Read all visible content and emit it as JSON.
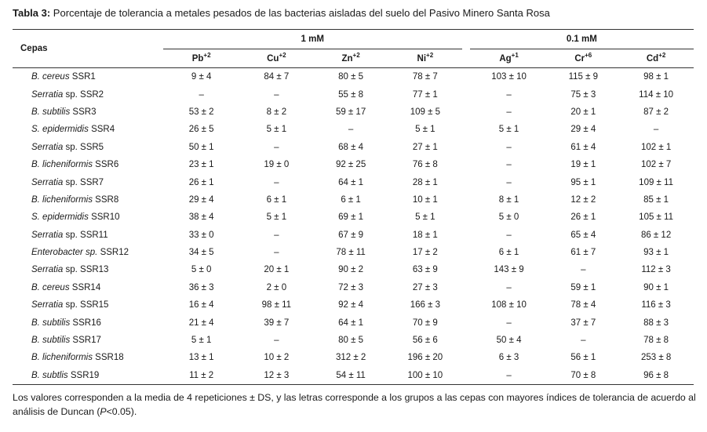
{
  "caption": {
    "label": "Tabla 3:",
    "text": "Porcentaje de tolerancia a metales pesados de las bacterias aisladas del suelo del Pasivo Minero Santa Rosa"
  },
  "table": {
    "strain_header": "Cepas",
    "groups": [
      "1 mM",
      "0.1 mM"
    ],
    "metals": [
      {
        "symbol": "Pb",
        "charge": "+2"
      },
      {
        "symbol": "Cu",
        "charge": "+2"
      },
      {
        "symbol": "Zn",
        "charge": "+2"
      },
      {
        "symbol": "Ni",
        "charge": "+2"
      },
      {
        "symbol": "Ag",
        "charge": "+1"
      },
      {
        "symbol": "Cr",
        "charge": "+6"
      },
      {
        "symbol": "Cd",
        "charge": "+2"
      }
    ],
    "rows": [
      {
        "genus": "B. cereus",
        "code": "SSR1",
        "values": [
          "9 ± 4",
          "84 ± 7",
          "80 ± 5",
          "78 ± 7",
          "103 ± 10",
          "115 ± 9",
          "98 ± 1"
        ]
      },
      {
        "genus": "Serratia",
        "code": "sp. SSR2",
        "values": [
          "–",
          "–",
          "55 ± 8",
          "77 ± 1",
          "–",
          "75 ± 3",
          "114 ± 10"
        ]
      },
      {
        "genus": "B. subtilis",
        "code": "SSR3",
        "values": [
          "53 ± 2",
          "8 ± 2",
          "59 ± 17",
          "109 ± 5",
          "–",
          "20 ± 1",
          "87 ± 2"
        ]
      },
      {
        "genus": "S. epidermidis",
        "code": "SSR4",
        "values": [
          "26 ± 5",
          "5 ± 1",
          "–",
          "5 ± 1",
          "5 ± 1",
          "29 ± 4",
          "–"
        ]
      },
      {
        "genus": "Serratia",
        "code": "sp. SSR5",
        "values": [
          "50 ± 1",
          "–",
          "68 ± 4",
          "27 ± 1",
          "–",
          "61 ± 4",
          "102 ± 1"
        ]
      },
      {
        "genus": "B. licheniformis",
        "code": "SSR6",
        "values": [
          "23 ± 1",
          "19 ± 0",
          "92 ± 25",
          "76 ± 8",
          "–",
          "19 ± 1",
          "102 ± 7"
        ]
      },
      {
        "genus": "Serratia",
        "code": "sp. SSR7",
        "values": [
          "26 ± 1",
          "–",
          "64 ± 1",
          "28 ± 1",
          "–",
          "95 ± 1",
          "109 ± 11"
        ]
      },
      {
        "genus": "B. licheniformis",
        "code": "SSR8",
        "values": [
          "29 ± 4",
          "6 ± 1",
          "6 ± 1",
          "10 ± 1",
          "8 ± 1",
          "12 ± 2",
          "85 ± 1"
        ]
      },
      {
        "genus": "S. epidermidis",
        "code": "SSR10",
        "values": [
          "38 ± 4",
          "5 ± 1",
          "69 ± 1",
          "5 ± 1",
          "5 ± 0",
          "26 ± 1",
          "105 ± 11"
        ]
      },
      {
        "genus": "Serratia",
        "code": "sp. SSR11",
        "values": [
          "33 ± 0",
          "–",
          "67 ± 9",
          "18 ± 1",
          "–",
          "65 ± 4",
          "86 ± 12"
        ]
      },
      {
        "genus": "Enterobacter sp.",
        "code": "SSR12",
        "values": [
          "34 ± 5",
          "–",
          "78 ± 11",
          "17 ± 2",
          "6 ± 1",
          "61 ± 7",
          "93 ± 1"
        ]
      },
      {
        "genus": "Serratia",
        "code": "sp. SSR13",
        "values": [
          "5 ± 0",
          "20 ± 1",
          "90 ± 2",
          "63 ± 9",
          "143 ± 9",
          "–",
          "112 ± 3"
        ]
      },
      {
        "genus": "B. cereus",
        "code": "SSR14",
        "values": [
          "36 ± 3",
          "2 ± 0",
          "72 ± 3",
          "27 ± 3",
          "–",
          "59 ± 1",
          "90 ± 1"
        ]
      },
      {
        "genus": "Serratia",
        "code": "sp. SSR15",
        "values": [
          "16 ± 4",
          "98 ± 11",
          "92 ± 4",
          "166 ± 3",
          "108 ± 10",
          "78 ± 4",
          "116 ± 3"
        ]
      },
      {
        "genus": "B. subtilis",
        "code": "SSR16",
        "values": [
          "21 ± 4",
          "39 ± 7",
          "64 ± 1",
          "70 ± 9",
          "–",
          "37 ± 7",
          "88 ± 3"
        ]
      },
      {
        "genus": "B. subtilis",
        "code": "SSR17",
        "values": [
          "5 ± 1",
          "–",
          "80 ± 5",
          "56 ± 6",
          "50 ± 4",
          "–",
          "78 ± 8"
        ]
      },
      {
        "genus": "B. licheniformis",
        "code": "SSR18",
        "values": [
          "13 ± 1",
          "10 ± 2",
          "312 ± 2",
          "196 ± 20",
          "6 ± 3",
          "56 ± 1",
          "253 ± 8"
        ]
      },
      {
        "genus": "B. subtlis",
        "code": "SSR19",
        "values": [
          "11 ± 2",
          "12 ± 3",
          "54 ± 11",
          "100 ± 10",
          "–",
          "70 ± 8",
          "96 ± 8"
        ]
      }
    ]
  },
  "footnote": {
    "text_before": "Los valores corresponden a la media de 4 repeticiones ± DS, y las letras corresponde a los grupos a las cepas con mayores índices de tolerancia de acuerdo al análisis de Duncan (",
    "p_symbol": "P",
    "text_after": "<0.05)."
  }
}
